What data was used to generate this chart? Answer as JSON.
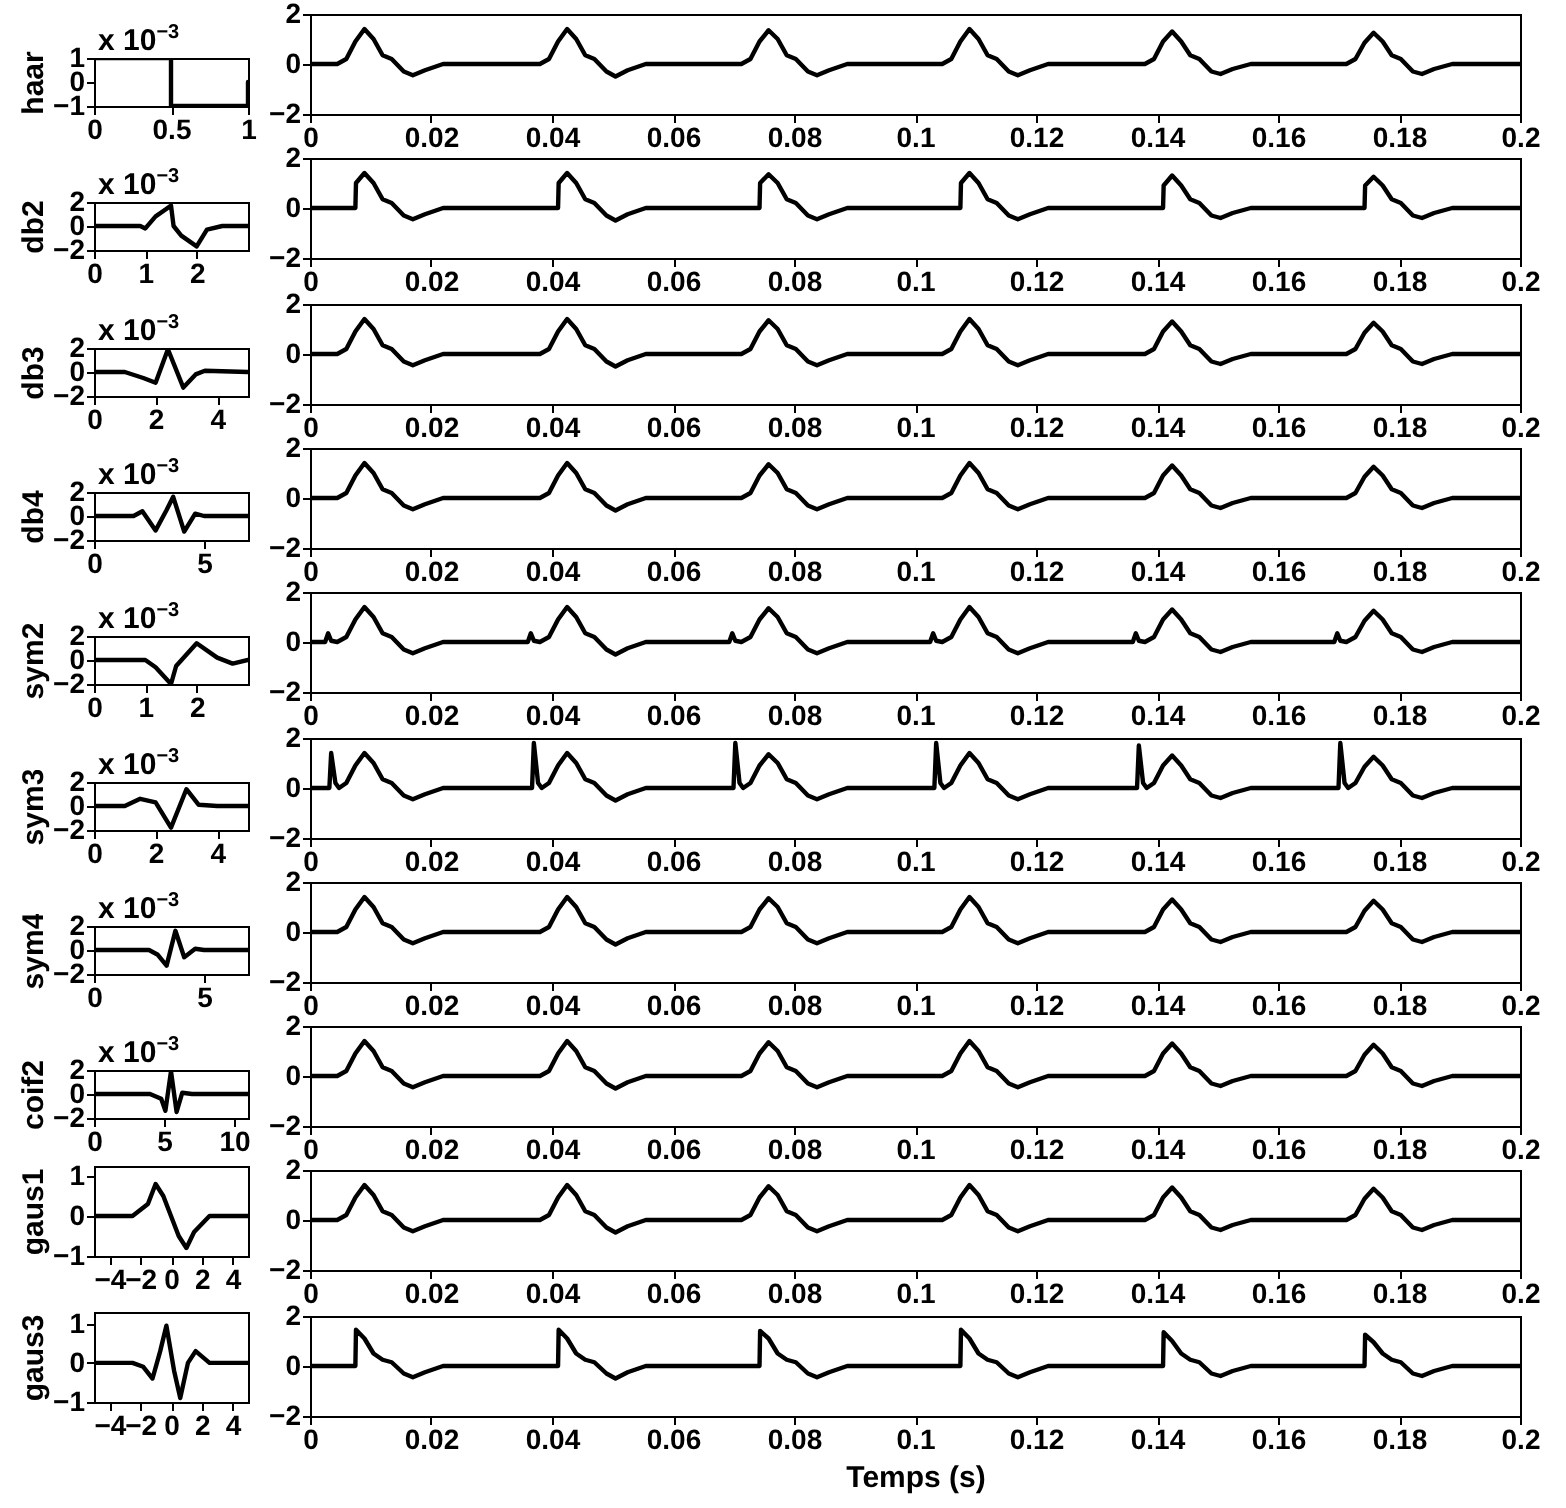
{
  "chart_data": [
    {
      "type": "line",
      "ylabel": "haar",
      "annotations": [
        "x 10$^{−3}$"
      ],
      "xlim": [
        0,
        1
      ],
      "xticks": [
        0,
        0.5,
        1
      ],
      "ylim": [
        -1,
        1
      ],
      "yticks": [
        -1,
        0,
        1
      ],
      "x": [
        0,
        0.5,
        0.5,
        1,
        1
      ],
      "series": [
        {
          "color": "#000000",
          "values": [
            1,
            1,
            -1,
            -1,
            0
          ]
        }
      ]
    },
    {
      "type": "line",
      "xlim": [
        0,
        0.2
      ],
      "xticks": [
        0,
        0.02,
        0.04,
        0.06,
        0.08,
        0.1,
        0.12,
        0.14,
        0.16,
        0.18,
        0.2
      ],
      "ylim": [
        -2,
        2
      ],
      "yticks": [
        -2,
        0,
        2
      ],
      "x": [
        0,
        0.0045,
        0.006,
        0.0075,
        0.009,
        0.0105,
        0.012,
        0.0135,
        0.0155,
        0.017,
        0.019,
        0.022,
        0.038,
        0.0395,
        0.041,
        0.0425,
        0.044,
        0.0455,
        0.047,
        0.049,
        0.0505,
        0.0525,
        0.0555,
        0.0713,
        0.0728,
        0.0743,
        0.0758,
        0.0773,
        0.0788,
        0.0803,
        0.0823,
        0.0838,
        0.0858,
        0.0888,
        0.1045,
        0.106,
        0.1075,
        0.109,
        0.1105,
        0.112,
        0.1135,
        0.1155,
        0.117,
        0.119,
        0.122,
        0.138,
        0.1395,
        0.141,
        0.1425,
        0.144,
        0.1455,
        0.147,
        0.149,
        0.1505,
        0.1525,
        0.1555,
        0.1713,
        0.1728,
        0.1743,
        0.1758,
        0.1773,
        0.1788,
        0.1803,
        0.1823,
        0.1838,
        0.1858,
        0.1888,
        0.2
      ],
      "series": [
        {
          "color": "#000000",
          "values": [
            0,
            0,
            0.2,
            0.9,
            1.4,
            1.0,
            0.35,
            0.2,
            -0.3,
            -0.45,
            -0.25,
            0,
            0,
            0.2,
            0.9,
            1.4,
            1.0,
            0.35,
            0.2,
            -0.3,
            -0.5,
            -0.25,
            0,
            0,
            0.2,
            0.9,
            1.35,
            1.0,
            0.35,
            0.2,
            -0.3,
            -0.45,
            -0.25,
            0,
            0,
            0.2,
            0.9,
            1.4,
            1.0,
            0.35,
            0.2,
            -0.3,
            -0.45,
            -0.25,
            0,
            0,
            0.2,
            0.9,
            1.3,
            0.9,
            0.35,
            0.2,
            -0.3,
            -0.4,
            -0.2,
            0,
            0,
            0.2,
            0.85,
            1.25,
            0.9,
            0.35,
            0.2,
            -0.3,
            -0.4,
            -0.2,
            0,
            0
          ]
        }
      ]
    },
    {
      "type": "line",
      "ylabel": "db2",
      "annotations": [
        "x 10$^{−3}$"
      ],
      "xlim": [
        0,
        3
      ],
      "xticks": [
        0,
        1,
        2
      ],
      "ylim": [
        -2,
        2
      ],
      "yticks": [
        -2,
        0,
        2
      ],
      "x": [
        0,
        0.9,
        1.0,
        1.2,
        1.4,
        1.5,
        1.55,
        1.7,
        2.0,
        2.2,
        2.5,
        3
      ],
      "series": [
        {
          "color": "#000000",
          "values": [
            0,
            0,
            -0.2,
            0.8,
            1.4,
            1.7,
            0,
            -0.8,
            -1.7,
            -0.3,
            0,
            0
          ]
        }
      ]
    },
    {
      "type": "line",
      "xlim": [
        0,
        0.2
      ],
      "xticks": [
        0,
        0.02,
        0.04,
        0.06,
        0.08,
        0.1,
        0.12,
        0.14,
        0.16,
        0.18,
        0.2
      ],
      "ylim": [
        -2,
        2
      ],
      "yticks": [
        -2,
        0,
        2
      ],
      "x": [
        0,
        0.0075,
        0.0076,
        0.009,
        0.0105,
        0.012,
        0.0135,
        0.0155,
        0.017,
        0.019,
        0.022,
        0.041,
        0.0411,
        0.0425,
        0.044,
        0.0455,
        0.047,
        0.049,
        0.0505,
        0.0525,
        0.0555,
        0.0743,
        0.0744,
        0.0758,
        0.0773,
        0.0788,
        0.0803,
        0.0823,
        0.0838,
        0.0858,
        0.0888,
        0.1075,
        0.1076,
        0.109,
        0.1105,
        0.112,
        0.1135,
        0.1155,
        0.117,
        0.119,
        0.122,
        0.141,
        0.1411,
        0.1425,
        0.144,
        0.1455,
        0.147,
        0.149,
        0.1505,
        0.1525,
        0.1555,
        0.1743,
        0.1744,
        0.1758,
        0.1773,
        0.1788,
        0.1803,
        0.1823,
        0.1838,
        0.1858,
        0.1888,
        0.2
      ],
      "series": [
        {
          "color": "#000000",
          "values": [
            0,
            0,
            1.0,
            1.4,
            1.0,
            0.35,
            0.2,
            -0.3,
            -0.45,
            -0.25,
            0,
            0,
            1.0,
            1.4,
            1.0,
            0.35,
            0.2,
            -0.3,
            -0.5,
            -0.25,
            0,
            0,
            1.0,
            1.35,
            1.0,
            0.35,
            0.2,
            -0.3,
            -0.45,
            -0.25,
            0,
            0,
            1.0,
            1.4,
            1.0,
            0.35,
            0.2,
            -0.3,
            -0.45,
            -0.25,
            0,
            0,
            0.9,
            1.3,
            0.9,
            0.35,
            0.2,
            -0.3,
            -0.4,
            -0.2,
            0,
            0,
            0.9,
            1.25,
            0.9,
            0.35,
            0.2,
            -0.3,
            -0.4,
            -0.2,
            0,
            0
          ]
        }
      ]
    },
    {
      "type": "line",
      "ylabel": "db3",
      "annotations": [
        "x 10$^{−3}$"
      ],
      "xlim": [
        0,
        5
      ],
      "xticks": [
        0,
        2,
        4
      ],
      "ylim": [
        -2,
        2
      ],
      "yticks": [
        -2,
        0,
        2
      ],
      "x": [
        0,
        1,
        1.6,
        2.0,
        2.4,
        2.9,
        3.3,
        3.6,
        5
      ],
      "series": [
        {
          "color": "#000000",
          "values": [
            0,
            0,
            -0.5,
            -0.9,
            1.9,
            -1.3,
            -0.2,
            0.1,
            0
          ]
        }
      ]
    },
    {
      "type": "line",
      "xlim": [
        0,
        0.2
      ],
      "xticks": [
        0,
        0.02,
        0.04,
        0.06,
        0.08,
        0.1,
        0.12,
        0.14,
        0.16,
        0.18,
        0.2
      ],
      "ylim": [
        -2,
        2
      ],
      "yticks": [
        -2,
        0,
        2
      ],
      "x": [
        0,
        0.0045,
        0.006,
        0.0075,
        0.009,
        0.0105,
        0.012,
        0.0135,
        0.0155,
        0.017,
        0.019,
        0.022,
        0.038,
        0.0395,
        0.041,
        0.0425,
        0.044,
        0.0455,
        0.047,
        0.049,
        0.0505,
        0.0525,
        0.0555,
        0.0713,
        0.0728,
        0.0743,
        0.0758,
        0.0773,
        0.0788,
        0.0803,
        0.0823,
        0.0838,
        0.0858,
        0.0888,
        0.1045,
        0.106,
        0.1075,
        0.109,
        0.1105,
        0.112,
        0.1135,
        0.1155,
        0.117,
        0.119,
        0.122,
        0.138,
        0.1395,
        0.141,
        0.1425,
        0.144,
        0.1455,
        0.147,
        0.149,
        0.1505,
        0.1525,
        0.1555,
        0.1713,
        0.1728,
        0.1743,
        0.1758,
        0.1773,
        0.1788,
        0.1803,
        0.1823,
        0.1838,
        0.1858,
        0.1888,
        0.2
      ],
      "series": [
        {
          "color": "#000000",
          "values": [
            0,
            0,
            0.2,
            0.9,
            1.4,
            1.0,
            0.35,
            0.2,
            -0.3,
            -0.45,
            -0.25,
            0,
            0,
            0.2,
            0.9,
            1.4,
            1.0,
            0.35,
            0.2,
            -0.3,
            -0.5,
            -0.25,
            0,
            0,
            0.2,
            0.9,
            1.35,
            1.0,
            0.35,
            0.2,
            -0.3,
            -0.45,
            -0.25,
            0,
            0,
            0.2,
            0.9,
            1.4,
            1.0,
            0.35,
            0.2,
            -0.3,
            -0.45,
            -0.25,
            0,
            0,
            0.2,
            0.9,
            1.3,
            0.9,
            0.35,
            0.2,
            -0.3,
            -0.4,
            -0.2,
            0,
            0,
            0.2,
            0.85,
            1.25,
            0.9,
            0.35,
            0.2,
            -0.3,
            -0.4,
            -0.2,
            0,
            0
          ]
        }
      ]
    },
    {
      "type": "line",
      "ylabel": "db4",
      "annotations": [
        "x 10$^{−3}$"
      ],
      "xlim": [
        0,
        7
      ],
      "xticks": [
        0,
        5
      ],
      "ylim": [
        -2,
        2
      ],
      "yticks": [
        -2,
        0,
        2
      ],
      "x": [
        0,
        1.8,
        2.2,
        2.8,
        3.3,
        3.6,
        4.1,
        4.6,
        5,
        7
      ],
      "series": [
        {
          "color": "#000000",
          "values": [
            0,
            0,
            0.4,
            -1.2,
            0.5,
            1.6,
            -1.3,
            0.2,
            0,
            0
          ]
        }
      ]
    },
    {
      "type": "line",
      "xlim": [
        0,
        0.2
      ],
      "xticks": [
        0,
        0.02,
        0.04,
        0.06,
        0.08,
        0.1,
        0.12,
        0.14,
        0.16,
        0.18,
        0.2
      ],
      "ylim": [
        -2,
        2
      ],
      "yticks": [
        -2,
        0,
        2
      ],
      "x": [
        0,
        0.0045,
        0.006,
        0.0075,
        0.009,
        0.0105,
        0.012,
        0.0135,
        0.0155,
        0.017,
        0.019,
        0.022,
        0.038,
        0.0395,
        0.041,
        0.0425,
        0.044,
        0.0455,
        0.047,
        0.049,
        0.0505,
        0.0525,
        0.0555,
        0.0713,
        0.0728,
        0.0743,
        0.0758,
        0.0773,
        0.0788,
        0.0803,
        0.0823,
        0.0838,
        0.0858,
        0.0888,
        0.1045,
        0.106,
        0.1075,
        0.109,
        0.1105,
        0.112,
        0.1135,
        0.1155,
        0.117,
        0.119,
        0.122,
        0.138,
        0.1395,
        0.141,
        0.1425,
        0.144,
        0.1455,
        0.147,
        0.149,
        0.1505,
        0.1525,
        0.1555,
        0.1713,
        0.1728,
        0.1743,
        0.1758,
        0.1773,
        0.1788,
        0.1803,
        0.1823,
        0.1838,
        0.1858,
        0.1888,
        0.2
      ],
      "series": [
        {
          "color": "#000000",
          "values": [
            0,
            0,
            0.2,
            0.9,
            1.4,
            1.0,
            0.35,
            0.2,
            -0.3,
            -0.45,
            -0.25,
            0,
            0,
            0.2,
            0.9,
            1.4,
            1.0,
            0.35,
            0.2,
            -0.3,
            -0.5,
            -0.25,
            0,
            0,
            0.2,
            0.9,
            1.35,
            1.0,
            0.35,
            0.2,
            -0.3,
            -0.45,
            -0.25,
            0,
            0,
            0.2,
            0.9,
            1.4,
            1.0,
            0.35,
            0.2,
            -0.3,
            -0.45,
            -0.25,
            0,
            0,
            0.2,
            0.9,
            1.3,
            0.9,
            0.35,
            0.2,
            -0.3,
            -0.4,
            -0.2,
            0,
            0,
            0.2,
            0.85,
            1.25,
            0.9,
            0.35,
            0.2,
            -0.3,
            -0.4,
            -0.2,
            0,
            0
          ]
        }
      ]
    },
    {
      "type": "line",
      "ylabel": "sym2",
      "annotations": [
        "x 10$^{−3}$"
      ],
      "xlim": [
        0,
        3
      ],
      "xticks": [
        0,
        1,
        2
      ],
      "ylim": [
        -2,
        2
      ],
      "yticks": [
        -2,
        0,
        2
      ],
      "x": [
        0,
        1.0,
        1.2,
        1.5,
        1.6,
        2.0,
        2.4,
        2.7,
        3
      ],
      "series": [
        {
          "color": "#000000",
          "values": [
            0,
            0,
            -0.6,
            -2,
            -0.5,
            1.4,
            0.2,
            -0.3,
            0
          ]
        }
      ]
    },
    {
      "type": "line",
      "xlim": [
        0,
        0.2
      ],
      "xticks": [
        0,
        0.02,
        0.04,
        0.06,
        0.08,
        0.1,
        0.12,
        0.14,
        0.16,
        0.18,
        0.2
      ],
      "ylim": [
        -2,
        2
      ],
      "yticks": [
        -2,
        0,
        2
      ],
      "x": [
        0,
        0.0025,
        0.003,
        0.0035,
        0.0045,
        0.006,
        0.0075,
        0.009,
        0.0105,
        0.012,
        0.0135,
        0.0155,
        0.017,
        0.019,
        0.022,
        0.036,
        0.0365,
        0.037,
        0.038,
        0.0395,
        0.041,
        0.0425,
        0.044,
        0.0455,
        0.047,
        0.049,
        0.0505,
        0.0525,
        0.0555,
        0.0693,
        0.0698,
        0.0703,
        0.0713,
        0.0728,
        0.0743,
        0.0758,
        0.0773,
        0.0788,
        0.0803,
        0.0823,
        0.0838,
        0.0858,
        0.0888,
        0.1025,
        0.103,
        0.1035,
        0.1045,
        0.106,
        0.1075,
        0.109,
        0.1105,
        0.112,
        0.1135,
        0.1155,
        0.117,
        0.119,
        0.122,
        0.136,
        0.1365,
        0.137,
        0.138,
        0.1395,
        0.141,
        0.1425,
        0.144,
        0.1455,
        0.147,
        0.149,
        0.1505,
        0.1525,
        0.1555,
        0.1693,
        0.1698,
        0.1703,
        0.1713,
        0.1728,
        0.1743,
        0.1758,
        0.1773,
        0.1788,
        0.1803,
        0.1823,
        0.1838,
        0.1858,
        0.1888,
        0.2
      ],
      "series": [
        {
          "color": "#000000",
          "values": [
            0,
            0,
            0.35,
            0.05,
            0,
            0.2,
            0.9,
            1.4,
            1.0,
            0.35,
            0.2,
            -0.3,
            -0.45,
            -0.25,
            0,
            0,
            0.35,
            0.05,
            0,
            0.2,
            0.9,
            1.4,
            1.0,
            0.35,
            0.2,
            -0.3,
            -0.5,
            -0.25,
            0,
            0,
            0.35,
            0.05,
            0,
            0.2,
            0.9,
            1.35,
            1.0,
            0.35,
            0.2,
            -0.3,
            -0.45,
            -0.25,
            0,
            0,
            0.35,
            0.05,
            0,
            0.2,
            0.9,
            1.4,
            1.0,
            0.35,
            0.2,
            -0.3,
            -0.45,
            -0.25,
            0,
            0,
            0.35,
            0.05,
            0,
            0.2,
            0.9,
            1.3,
            0.9,
            0.35,
            0.2,
            -0.3,
            -0.4,
            -0.2,
            0,
            0,
            0.35,
            0.05,
            0,
            0.2,
            0.85,
            1.25,
            0.9,
            0.35,
            0.2,
            -0.3,
            -0.4,
            -0.2,
            0,
            0
          ]
        }
      ]
    },
    {
      "type": "line",
      "ylabel": "sym3",
      "annotations": [
        "x 10$^{−3}$"
      ],
      "xlim": [
        0,
        5
      ],
      "xticks": [
        0,
        2,
        4
      ],
      "ylim": [
        -2,
        2
      ],
      "yticks": [
        -2,
        0,
        2
      ],
      "x": [
        0,
        1.0,
        1.5,
        2.0,
        2.5,
        3.0,
        3.4,
        4,
        5
      ],
      "series": [
        {
          "color": "#000000",
          "values": [
            0,
            0,
            0.6,
            0.3,
            -1.8,
            1.4,
            0.1,
            0,
            0
          ]
        }
      ]
    },
    {
      "type": "line",
      "xlim": [
        0,
        0.2
      ],
      "xticks": [
        0,
        0.02,
        0.04,
        0.06,
        0.08,
        0.1,
        0.12,
        0.14,
        0.16,
        0.18,
        0.2
      ],
      "ylim": [
        -2,
        2
      ],
      "yticks": [
        -2,
        0,
        2
      ],
      "x": [
        0,
        0.0032,
        0.0035,
        0.0042,
        0.0048,
        0.006,
        0.0075,
        0.009,
        0.0105,
        0.012,
        0.0135,
        0.0155,
        0.017,
        0.019,
        0.022,
        0.0367,
        0.037,
        0.0377,
        0.0383,
        0.0395,
        0.041,
        0.0425,
        0.044,
        0.0455,
        0.047,
        0.049,
        0.0505,
        0.0525,
        0.0555,
        0.07,
        0.0703,
        0.071,
        0.0716,
        0.0728,
        0.0743,
        0.0758,
        0.0773,
        0.0788,
        0.0803,
        0.0823,
        0.0838,
        0.0858,
        0.0888,
        0.1032,
        0.1035,
        0.1042,
        0.1048,
        0.106,
        0.1075,
        0.109,
        0.1105,
        0.112,
        0.1135,
        0.1155,
        0.117,
        0.119,
        0.122,
        0.1367,
        0.137,
        0.1377,
        0.1383,
        0.1395,
        0.141,
        0.1425,
        0.144,
        0.1455,
        0.147,
        0.149,
        0.1505,
        0.1525,
        0.1555,
        0.17,
        0.1703,
        0.171,
        0.1716,
        0.1728,
        0.1743,
        0.1758,
        0.1773,
        0.1788,
        0.1803,
        0.1823,
        0.1838,
        0.1858,
        0.1888,
        0.2
      ],
      "series": [
        {
          "color": "#000000",
          "values": [
            0,
            0,
            1.4,
            0.2,
            0,
            0.2,
            0.9,
            1.4,
            1.0,
            0.35,
            0.2,
            -0.3,
            -0.45,
            -0.25,
            0,
            0,
            1.8,
            0.2,
            0,
            0.2,
            0.9,
            1.4,
            1.0,
            0.35,
            0.2,
            -0.3,
            -0.5,
            -0.25,
            0,
            0,
            1.8,
            0.2,
            0,
            0.2,
            0.9,
            1.35,
            1.0,
            0.35,
            0.2,
            -0.3,
            -0.45,
            -0.25,
            0,
            0,
            1.8,
            0.2,
            0,
            0.2,
            0.9,
            1.4,
            1.0,
            0.35,
            0.2,
            -0.3,
            -0.45,
            -0.25,
            0,
            0,
            1.7,
            0.2,
            0,
            0.2,
            0.9,
            1.3,
            0.9,
            0.35,
            0.2,
            -0.3,
            -0.4,
            -0.2,
            0,
            0,
            1.8,
            0.2,
            0,
            0.2,
            0.85,
            1.25,
            0.9,
            0.35,
            0.2,
            -0.3,
            -0.4,
            -0.2,
            0,
            0
          ]
        }
      ]
    },
    {
      "type": "line",
      "ylabel": "sym4",
      "annotations": [
        "x 10$^{−3}$"
      ],
      "xlim": [
        0,
        7
      ],
      "xticks": [
        0,
        5
      ],
      "ylim": [
        -2,
        2
      ],
      "yticks": [
        -2,
        0,
        2
      ],
      "x": [
        0,
        2.5,
        2.9,
        3.3,
        3.7,
        4.1,
        4.6,
        5,
        7
      ],
      "series": [
        {
          "color": "#000000",
          "values": [
            0,
            0,
            -0.4,
            -1.3,
            1.6,
            -0.6,
            0.1,
            0,
            0
          ]
        }
      ]
    },
    {
      "type": "line",
      "xlim": [
        0,
        0.2
      ],
      "xticks": [
        0,
        0.02,
        0.04,
        0.06,
        0.08,
        0.1,
        0.12,
        0.14,
        0.16,
        0.18,
        0.2
      ],
      "ylim": [
        -2,
        2
      ],
      "yticks": [
        -2,
        0,
        2
      ],
      "x": [
        0,
        0.0045,
        0.006,
        0.0075,
        0.009,
        0.0105,
        0.012,
        0.0135,
        0.0155,
        0.017,
        0.019,
        0.022,
        0.038,
        0.0395,
        0.041,
        0.0425,
        0.044,
        0.0455,
        0.047,
        0.049,
        0.0505,
        0.0525,
        0.0555,
        0.0713,
        0.0728,
        0.0743,
        0.0758,
        0.0773,
        0.0788,
        0.0803,
        0.0823,
        0.0838,
        0.0858,
        0.0888,
        0.1045,
        0.106,
        0.1075,
        0.109,
        0.1105,
        0.112,
        0.1135,
        0.1155,
        0.117,
        0.119,
        0.122,
        0.138,
        0.1395,
        0.141,
        0.1425,
        0.144,
        0.1455,
        0.147,
        0.149,
        0.1505,
        0.1525,
        0.1555,
        0.1713,
        0.1728,
        0.1743,
        0.1758,
        0.1773,
        0.1788,
        0.1803,
        0.1823,
        0.1838,
        0.1858,
        0.1888,
        0.2
      ],
      "series": [
        {
          "color": "#000000",
          "values": [
            0,
            0,
            0.2,
            0.9,
            1.4,
            1.0,
            0.35,
            0.2,
            -0.3,
            -0.45,
            -0.25,
            0,
            0,
            0.2,
            0.9,
            1.4,
            1.0,
            0.35,
            0.2,
            -0.3,
            -0.5,
            -0.25,
            0,
            0,
            0.2,
            0.9,
            1.35,
            1.0,
            0.35,
            0.2,
            -0.3,
            -0.45,
            -0.25,
            0,
            0,
            0.2,
            0.9,
            1.4,
            1.0,
            0.35,
            0.2,
            -0.3,
            -0.45,
            -0.25,
            0,
            0,
            0.2,
            0.9,
            1.3,
            0.9,
            0.35,
            0.2,
            -0.3,
            -0.4,
            -0.2,
            0,
            0,
            0.2,
            0.85,
            1.25,
            0.9,
            0.35,
            0.2,
            -0.3,
            -0.4,
            -0.2,
            0,
            0
          ]
        }
      ]
    },
    {
      "type": "line",
      "ylabel": "coif2",
      "annotations": [
        "x 10$^{−3}$"
      ],
      "xlim": [
        0,
        11
      ],
      "xticks": [
        0,
        5,
        10
      ],
      "ylim": [
        -2,
        2
      ],
      "yticks": [
        -2,
        0,
        2
      ],
      "x": [
        0,
        4,
        4.8,
        5.1,
        5.5,
        5.9,
        6.3,
        7,
        11
      ],
      "series": [
        {
          "color": "#000000",
          "values": [
            0,
            0,
            -0.4,
            -1.4,
            1.9,
            -1.5,
            0.1,
            0,
            0
          ]
        }
      ]
    },
    {
      "type": "line",
      "xlim": [
        0,
        0.2
      ],
      "xticks": [
        0,
        0.02,
        0.04,
        0.06,
        0.08,
        0.1,
        0.12,
        0.14,
        0.16,
        0.18,
        0.2
      ],
      "ylim": [
        -2,
        2
      ],
      "yticks": [
        -2,
        0,
        2
      ],
      "x": [
        0,
        0.0045,
        0.006,
        0.0075,
        0.009,
        0.0105,
        0.012,
        0.0135,
        0.0155,
        0.017,
        0.019,
        0.022,
        0.038,
        0.0395,
        0.041,
        0.0425,
        0.044,
        0.0455,
        0.047,
        0.049,
        0.0505,
        0.0525,
        0.0555,
        0.0713,
        0.0728,
        0.0743,
        0.0758,
        0.0773,
        0.0788,
        0.0803,
        0.0823,
        0.0838,
        0.0858,
        0.0888,
        0.1045,
        0.106,
        0.1075,
        0.109,
        0.1105,
        0.112,
        0.1135,
        0.1155,
        0.117,
        0.119,
        0.122,
        0.138,
        0.1395,
        0.141,
        0.1425,
        0.144,
        0.1455,
        0.147,
        0.149,
        0.1505,
        0.1525,
        0.1555,
        0.1713,
        0.1728,
        0.1743,
        0.1758,
        0.1773,
        0.1788,
        0.1803,
        0.1823,
        0.1838,
        0.1858,
        0.1888,
        0.2
      ],
      "series": [
        {
          "color": "#000000",
          "values": [
            0,
            0,
            0.2,
            0.9,
            1.4,
            1.0,
            0.35,
            0.2,
            -0.3,
            -0.45,
            -0.25,
            0,
            0,
            0.2,
            0.9,
            1.4,
            1.0,
            0.35,
            0.2,
            -0.3,
            -0.5,
            -0.25,
            0,
            0,
            0.2,
            0.9,
            1.35,
            1.0,
            0.35,
            0.2,
            -0.3,
            -0.45,
            -0.25,
            0,
            0,
            0.2,
            0.9,
            1.4,
            1.0,
            0.35,
            0.2,
            -0.3,
            -0.45,
            -0.25,
            0,
            0,
            0.2,
            0.9,
            1.3,
            0.9,
            0.35,
            0.2,
            -0.3,
            -0.4,
            -0.2,
            0,
            0,
            0.2,
            0.85,
            1.25,
            0.9,
            0.35,
            0.2,
            -0.3,
            -0.4,
            -0.2,
            0,
            0
          ]
        }
      ]
    },
    {
      "type": "line",
      "ylabel": "gaus1",
      "xlim": [
        -5,
        5
      ],
      "xticks": [
        -4,
        -2,
        0,
        2,
        4
      ],
      "ylim": [
        -1,
        1.25
      ],
      "yticks": [
        -1,
        0,
        1
      ],
      "x": [
        -5,
        -2.5,
        -1.5,
        -1,
        -0.5,
        0,
        0.5,
        1,
        1.5,
        2.5,
        5
      ],
      "series": [
        {
          "color": "#000000",
          "values": [
            0,
            0,
            0.3,
            0.8,
            0.5,
            0,
            -0.5,
            -0.8,
            -0.4,
            0,
            0
          ]
        }
      ]
    },
    {
      "type": "line",
      "xlim": [
        0,
        0.2
      ],
      "xticks": [
        0,
        0.02,
        0.04,
        0.06,
        0.08,
        0.1,
        0.12,
        0.14,
        0.16,
        0.18,
        0.2
      ],
      "ylim": [
        -2,
        2
      ],
      "yticks": [
        -2,
        0,
        2
      ],
      "x": [
        0,
        0.0045,
        0.006,
        0.0075,
        0.009,
        0.0105,
        0.012,
        0.0135,
        0.0155,
        0.017,
        0.019,
        0.022,
        0.038,
        0.0395,
        0.041,
        0.0425,
        0.044,
        0.0455,
        0.047,
        0.049,
        0.0505,
        0.0525,
        0.0555,
        0.0713,
        0.0728,
        0.0743,
        0.0758,
        0.0773,
        0.0788,
        0.0803,
        0.0823,
        0.0838,
        0.0858,
        0.0888,
        0.1045,
        0.106,
        0.1075,
        0.109,
        0.1105,
        0.112,
        0.1135,
        0.1155,
        0.117,
        0.119,
        0.122,
        0.138,
        0.1395,
        0.141,
        0.1425,
        0.144,
        0.1455,
        0.147,
        0.149,
        0.1505,
        0.1525,
        0.1555,
        0.1713,
        0.1728,
        0.1743,
        0.1758,
        0.1773,
        0.1788,
        0.1803,
        0.1823,
        0.1838,
        0.1858,
        0.1888,
        0.2
      ],
      "series": [
        {
          "color": "#000000",
          "values": [
            0,
            0,
            0.2,
            0.9,
            1.4,
            1.0,
            0.35,
            0.2,
            -0.3,
            -0.45,
            -0.25,
            0,
            0,
            0.2,
            0.9,
            1.4,
            1.0,
            0.35,
            0.2,
            -0.3,
            -0.5,
            -0.25,
            0,
            0,
            0.2,
            0.9,
            1.35,
            1.0,
            0.35,
            0.2,
            -0.3,
            -0.45,
            -0.25,
            0,
            0,
            0.2,
            0.9,
            1.4,
            1.0,
            0.35,
            0.2,
            -0.3,
            -0.45,
            -0.25,
            0,
            0,
            0.2,
            0.9,
            1.3,
            0.9,
            0.35,
            0.2,
            -0.3,
            -0.4,
            -0.2,
            0,
            0,
            0.2,
            0.85,
            1.25,
            0.9,
            0.35,
            0.2,
            -0.3,
            -0.4,
            -0.2,
            0,
            0
          ]
        }
      ]
    },
    {
      "type": "line",
      "ylabel": "gaus3",
      "xlim": [
        -5,
        5
      ],
      "xticks": [
        -4,
        -2,
        0,
        2,
        4
      ],
      "ylim": [
        -1,
        1.3
      ],
      "yticks": [
        -1,
        0,
        1
      ],
      "x": [
        -5,
        -2.5,
        -1.8,
        -1.2,
        -0.7,
        -0.3,
        0.2,
        0.6,
        1.1,
        1.6,
        2.5,
        5
      ],
      "series": [
        {
          "color": "#000000",
          "values": [
            0,
            0,
            -0.1,
            -0.4,
            0.3,
            0.95,
            -0.2,
            -0.9,
            0,
            0.3,
            0,
            0
          ]
        }
      ]
    },
    {
      "type": "line",
      "xlabel": "Temps (s)",
      "xlim": [
        0,
        0.2
      ],
      "xticks": [
        0,
        0.02,
        0.04,
        0.06,
        0.08,
        0.1,
        0.12,
        0.14,
        0.16,
        0.18,
        0.2
      ],
      "ylim": [
        -2,
        2
      ],
      "yticks": [
        -2,
        0,
        2
      ],
      "x": [
        0,
        0.0075,
        0.0076,
        0.009,
        0.0105,
        0.012,
        0.0135,
        0.0155,
        0.017,
        0.019,
        0.022,
        0.041,
        0.0411,
        0.0425,
        0.044,
        0.0455,
        0.047,
        0.049,
        0.0505,
        0.0525,
        0.0555,
        0.0743,
        0.0744,
        0.0758,
        0.0773,
        0.0788,
        0.0803,
        0.0823,
        0.0838,
        0.0858,
        0.0888,
        0.1075,
        0.1076,
        0.109,
        0.1105,
        0.112,
        0.1135,
        0.1155,
        0.117,
        0.119,
        0.122,
        0.141,
        0.1411,
        0.1425,
        0.144,
        0.1455,
        0.147,
        0.149,
        0.1505,
        0.1525,
        0.1555,
        0.1743,
        0.1744,
        0.1758,
        0.1773,
        0.1788,
        0.1803,
        0.1823,
        0.1838,
        0.1858,
        0.1888,
        0.2
      ],
      "series": [
        {
          "color": "#000000",
          "values": [
            0,
            0,
            1.45,
            1.1,
            0.5,
            0.25,
            0.15,
            -0.3,
            -0.45,
            -0.25,
            0,
            0,
            1.45,
            1.1,
            0.5,
            0.25,
            0.15,
            -0.3,
            -0.5,
            -0.25,
            0,
            0,
            1.4,
            1.1,
            0.5,
            0.25,
            0.15,
            -0.3,
            -0.45,
            -0.25,
            0,
            0,
            1.45,
            1.1,
            0.5,
            0.25,
            0.15,
            -0.3,
            -0.45,
            -0.25,
            0,
            0,
            1.35,
            1.0,
            0.5,
            0.25,
            0.15,
            -0.3,
            -0.4,
            -0.2,
            0,
            0,
            1.25,
            0.95,
            0.5,
            0.25,
            0.15,
            -0.3,
            -0.4,
            -0.2,
            0,
            0
          ]
        }
      ]
    }
  ]
}
